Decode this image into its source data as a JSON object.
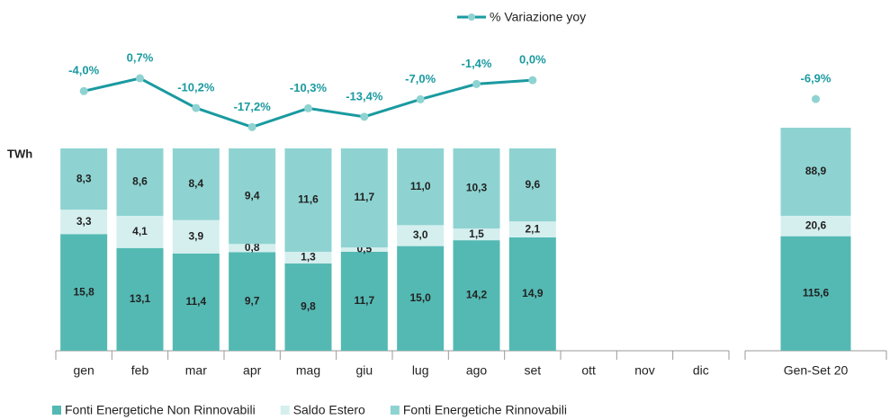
{
  "chart_data": [
    {
      "type": "bar",
      "stacking": "percent",
      "y_label": "TWh",
      "categories": [
        "gen",
        "feb",
        "mar",
        "apr",
        "mag",
        "giu",
        "lug",
        "ago",
        "set",
        "ott",
        "nov",
        "dic"
      ],
      "y2lim": [
        -25,
        5
      ],
      "series": [
        {
          "name": "Fonti Energetiche Non Rinnovabili",
          "color": "#54b9b3",
          "values": [
            15.8,
            13.1,
            11.4,
            9.7,
            9.8,
            11.7,
            15.0,
            14.2,
            14.9,
            null,
            null,
            null
          ],
          "value_labels": [
            "15,8",
            "13,1",
            "11,4",
            "9,7",
            "9,8",
            "11,7",
            "15,0",
            "14,2",
            "14,9",
            null,
            null,
            null
          ]
        },
        {
          "name": "Saldo Estero",
          "color": "#d5efef",
          "values": [
            3.3,
            4.1,
            3.9,
            0.8,
            1.3,
            0.5,
            3.0,
            1.5,
            2.1,
            null,
            null,
            null
          ],
          "value_labels": [
            "3,3",
            "4,1",
            "3,9",
            "0,8",
            "1,3",
            "0,5",
            "3,0",
            "1,5",
            "2,1",
            null,
            null,
            null
          ]
        },
        {
          "name": "Fonti Energetiche Rinnovabili",
          "color": "#8ed3d1",
          "values": [
            8.3,
            8.6,
            8.4,
            9.4,
            11.6,
            11.7,
            11.0,
            10.3,
            9.6,
            null,
            null,
            null
          ],
          "value_labels": [
            "8,3",
            "8,6",
            "8,4",
            "9,4",
            "11,6",
            "11,7",
            "11,0",
            "10,3",
            "9,6",
            null,
            null,
            null
          ]
        },
        {
          "name": "% Variazione yoy",
          "type": "line",
          "axis": "y2",
          "color": "#1a9aa0",
          "marker_color": "#8ed3d1",
          "values": [
            -4.0,
            0.7,
            -10.2,
            -17.2,
            -10.3,
            -13.4,
            -7.0,
            -1.4,
            0.0,
            null,
            null,
            null
          ],
          "value_labels": [
            "-4,0%",
            "0,7%",
            "-10,2%",
            "-17,2%",
            "-10,3%",
            "-13,4%",
            "-7,0%",
            "-1,4%",
            "0,0%",
            null,
            null,
            null
          ]
        }
      ]
    },
    {
      "type": "bar",
      "stacking": "percent",
      "categories": [
        "Gen-Set 20"
      ],
      "y2lim": [
        -25,
        5
      ],
      "series": [
        {
          "color": "#54b9b3",
          "values": [
            115.6
          ],
          "value_labels": [
            "115,6"
          ]
        },
        {
          "color": "#d5efef",
          "values": [
            20.6
          ],
          "value_labels": [
            "20,6"
          ]
        },
        {
          "color": "#8ed3d1",
          "values": [
            88.9
          ],
          "value_labels": [
            "88,9"
          ]
        },
        {
          "type": "line",
          "axis": "y2",
          "color": "#1a9aa0",
          "marker_color": "#8ed3d1",
          "values": [
            -6.9
          ],
          "value_labels": [
            "-6,9%"
          ]
        }
      ]
    }
  ]
}
